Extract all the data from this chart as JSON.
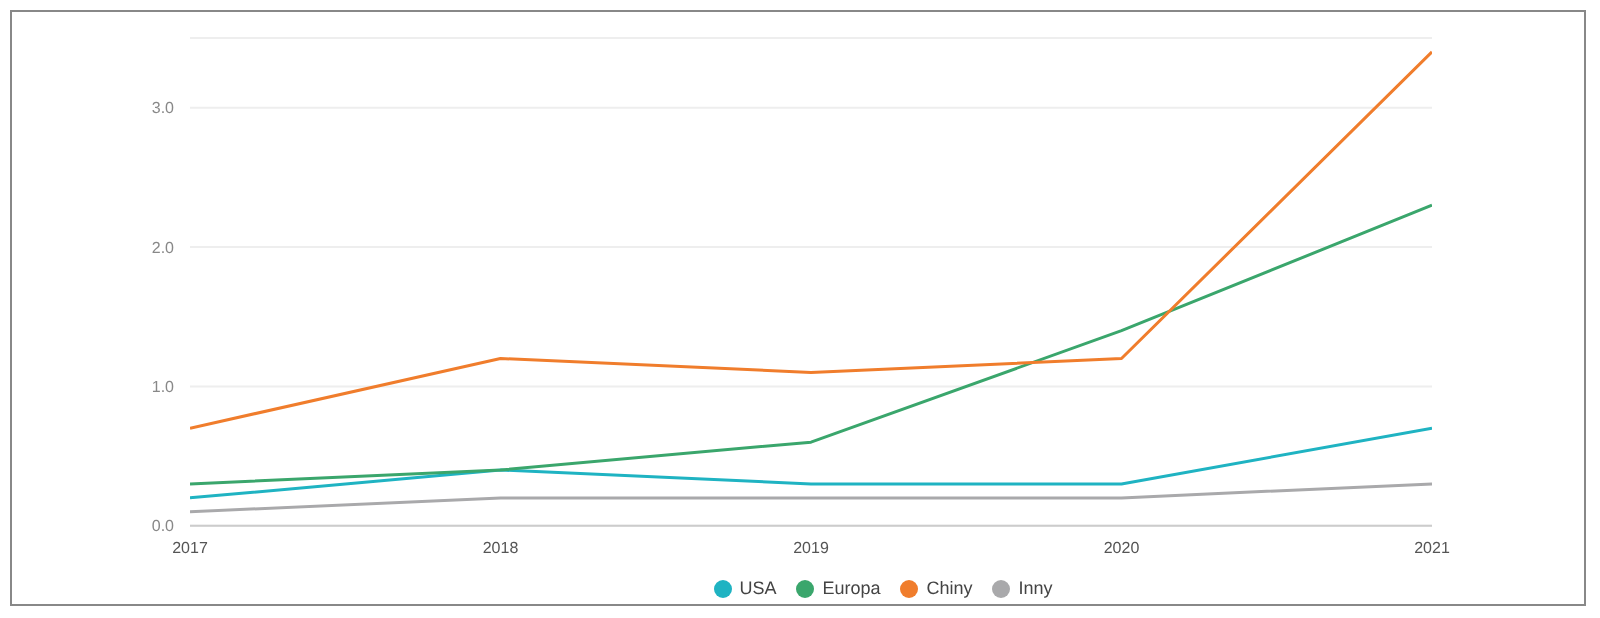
{
  "chart_data": {
    "type": "line",
    "x": [
      2017,
      2018,
      2019,
      2020,
      2021
    ],
    "xlim": [
      2017,
      2021
    ],
    "xticks": [
      2017,
      2018,
      2019,
      2020,
      2021
    ],
    "ylim": [
      0,
      3.5
    ],
    "yticks": [
      {
        "value": 0,
        "label": "0.0"
      },
      {
        "value": 1,
        "label": "1.0"
      },
      {
        "value": 2,
        "label": "2.0"
      },
      {
        "value": 3,
        "label": "3.0"
      }
    ],
    "grid": "y",
    "legend": "bottom",
    "marker": "none",
    "line_style": "solid",
    "series": [
      {
        "name": "USA",
        "color": "#1fb3c2",
        "values": [
          0.2,
          0.4,
          0.3,
          0.3,
          0.7
        ]
      },
      {
        "name": "Europa",
        "color": "#3aa66c",
        "values": [
          0.3,
          0.4,
          0.6,
          1.4,
          2.3
        ]
      },
      {
        "name": "Chiny",
        "color": "#f07d2c",
        "values": [
          0.7,
          1.2,
          1.1,
          1.2,
          3.4
        ]
      },
      {
        "name": "Inny",
        "color": "#a9a9ab",
        "values": [
          0.1,
          0.2,
          0.2,
          0.2,
          0.3
        ]
      }
    ]
  }
}
